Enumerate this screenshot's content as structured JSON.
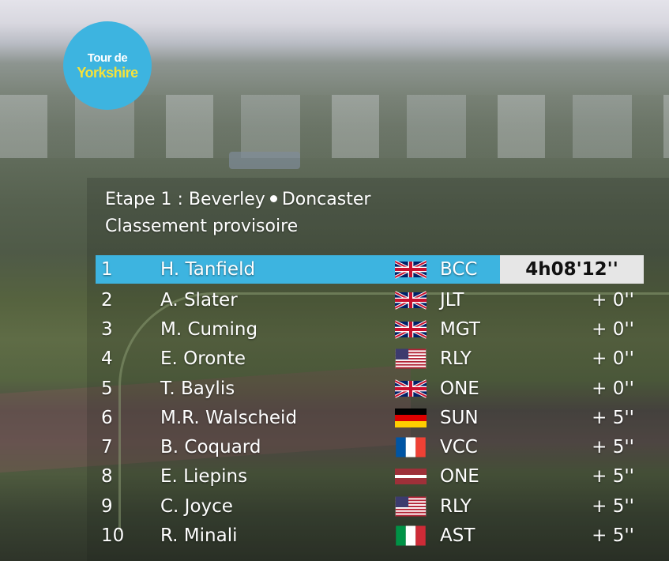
{
  "logo": {
    "line1": "Tour de",
    "line2": "Yorkshire"
  },
  "header": {
    "stage_label": "Etape 1 :",
    "start": "Beverley",
    "finish": "Doncaster",
    "subtitle": "Classement provisoire"
  },
  "leader": {
    "position": "1",
    "name": "H. Tanfield",
    "flag": "gb-flag-icon",
    "team": "BCC",
    "time": "4h08'12''"
  },
  "riders": [
    {
      "position": "2",
      "name": "A. Slater",
      "flag": "gb-flag-icon",
      "team": "JLT",
      "gap": "+ 0''"
    },
    {
      "position": "3",
      "name": "M. Cuming",
      "flag": "gb-flag-icon",
      "team": "MGT",
      "gap": "+ 0''"
    },
    {
      "position": "4",
      "name": "E. Oronte",
      "flag": "us-flag-icon",
      "team": "RLY",
      "gap": "+ 0''"
    },
    {
      "position": "5",
      "name": "T. Baylis",
      "flag": "gb-flag-icon",
      "team": "ONE",
      "gap": "+ 0''"
    },
    {
      "position": "6",
      "name": "M.R. Walscheid",
      "flag": "de-flag-icon",
      "team": "SUN",
      "gap": "+ 5''"
    },
    {
      "position": "7",
      "name": "B. Coquard",
      "flag": "fr-flag-icon",
      "team": "VCC",
      "gap": "+ 5''"
    },
    {
      "position": "8",
      "name": "E. Liepins",
      "flag": "lv-flag-icon",
      "team": "ONE",
      "gap": "+ 5''"
    },
    {
      "position": "9",
      "name": "C. Joyce",
      "flag": "us-flag-icon",
      "team": "RLY",
      "gap": "+ 5''"
    },
    {
      "position": "10",
      "name": "R. Minali",
      "flag": "it-flag-icon",
      "team": "AST",
      "gap": "+ 5''"
    }
  ],
  "colors": {
    "accent": "#3db4e0",
    "time_box": "#e6e6e6",
    "logo_yellow": "#f5e23a"
  }
}
